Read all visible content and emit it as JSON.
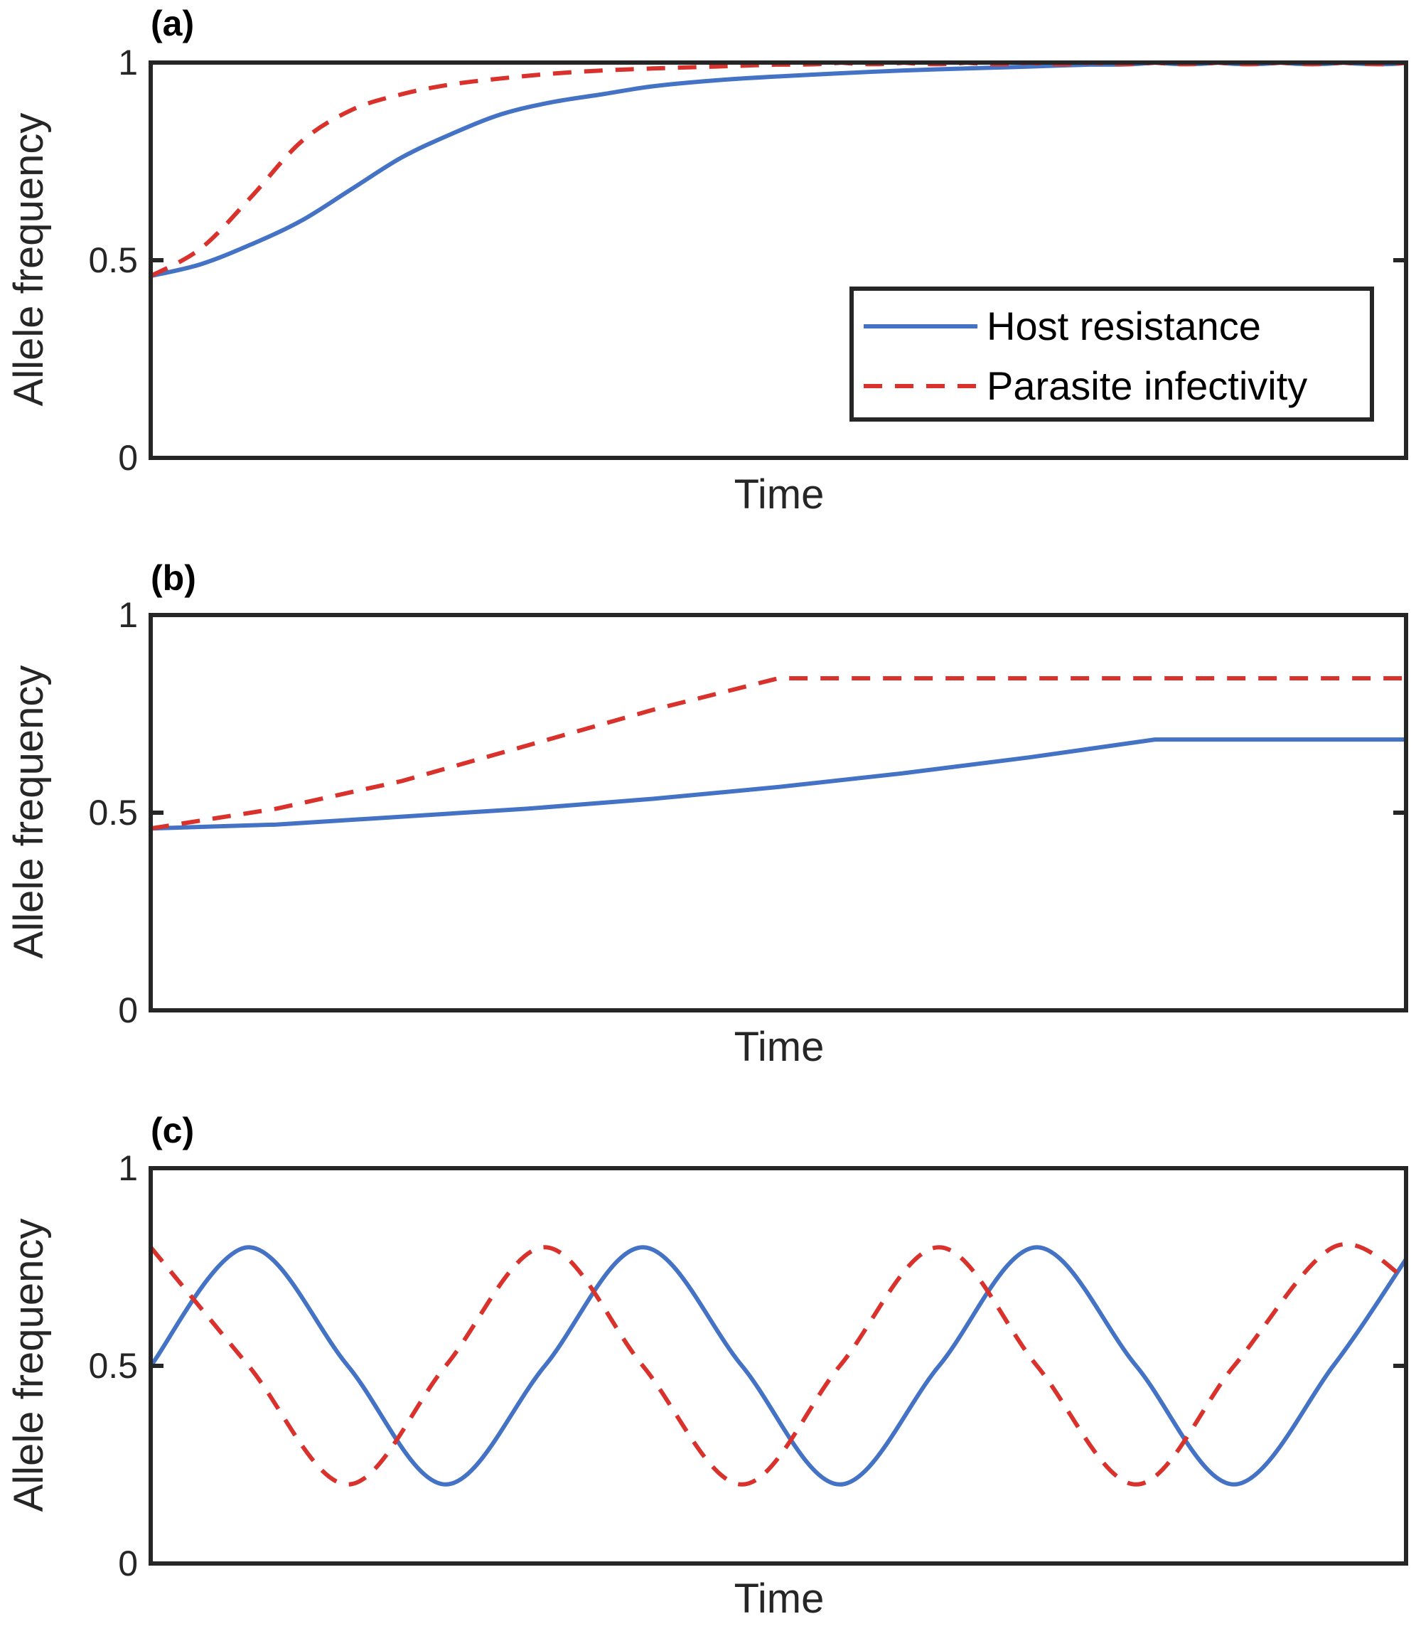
{
  "chart_data": [
    {
      "type": "line",
      "panel_label": "(a)",
      "xlabel": "Time",
      "ylabel": "Allele frequency",
      "ylim": [
        0,
        1
      ],
      "xlim": [
        0,
        1
      ],
      "yticks": [
        "0",
        "0.5",
        "1"
      ],
      "xticks": [],
      "grid": false,
      "legend": {
        "placement": "lower-right",
        "entries": [
          "Host resistance",
          "Parasite infectivity"
        ]
      },
      "series": [
        {
          "name": "Host resistance",
          "color": "#4472C4",
          "dash": "solid",
          "x": [
            0,
            0.04,
            0.08,
            0.12,
            0.16,
            0.2,
            0.24,
            0.28,
            0.32,
            0.36,
            0.4,
            0.45,
            0.5,
            0.55,
            0.6,
            0.65,
            0.7,
            0.75,
            0.8,
            0.85,
            0.9,
            0.95,
            1.0
          ],
          "values": [
            0.46,
            0.49,
            0.54,
            0.6,
            0.68,
            0.76,
            0.82,
            0.87,
            0.9,
            0.92,
            0.94,
            0.955,
            0.965,
            0.973,
            0.98,
            0.985,
            0.99,
            0.995,
            1.0,
            1.0,
            1.0,
            1.0,
            1.0
          ]
        },
        {
          "name": "Parasite infectivity",
          "color": "#D9312B",
          "dash": "dashed",
          "x": [
            0,
            0.04,
            0.08,
            0.12,
            0.16,
            0.2,
            0.24,
            0.28,
            0.32,
            0.36,
            0.4,
            0.45,
            0.5,
            0.55,
            0.6,
            0.65,
            0.7,
            0.75,
            0.8,
            0.85,
            0.9,
            0.95,
            1.0
          ],
          "values": [
            0.46,
            0.53,
            0.66,
            0.8,
            0.88,
            0.92,
            0.945,
            0.96,
            0.972,
            0.98,
            0.985,
            0.99,
            0.995,
            1.0,
            1.0,
            1.0,
            1.0,
            1.0,
            1.0,
            1.0,
            1.0,
            1.0,
            1.0
          ]
        }
      ]
    },
    {
      "type": "line",
      "panel_label": "(b)",
      "xlabel": "Time",
      "ylabel": "Allele frequency",
      "ylim": [
        0,
        1
      ],
      "xlim": [
        0,
        1
      ],
      "yticks": [
        "0",
        "0.5",
        "1"
      ],
      "xticks": [],
      "grid": false,
      "series": [
        {
          "name": "Host resistance",
          "color": "#4472C4",
          "dash": "solid",
          "x": [
            0,
            0.1,
            0.2,
            0.3,
            0.4,
            0.5,
            0.6,
            0.7,
            0.8,
            0.9,
            1.0
          ],
          "values": [
            0.46,
            0.47,
            0.49,
            0.51,
            0.535,
            0.565,
            0.6,
            0.64,
            0.685,
            0.685,
            0.685
          ]
        },
        {
          "name": "Parasite infectivity",
          "color": "#D9312B",
          "dash": "dashed",
          "x": [
            0,
            0.1,
            0.2,
            0.3,
            0.4,
            0.5,
            0.6,
            0.7,
            0.8,
            0.9,
            1.0
          ],
          "values": [
            0.46,
            0.51,
            0.58,
            0.67,
            0.76,
            0.84,
            0.84,
            0.84,
            0.84,
            0.84,
            0.84
          ]
        }
      ]
    },
    {
      "type": "line",
      "panel_label": "(c)",
      "xlabel": "Time",
      "ylabel": "Allele frequency",
      "ylim": [
        0,
        1
      ],
      "xlim": [
        0,
        1
      ],
      "yticks": [
        "0",
        "0.5",
        "1"
      ],
      "xticks": [],
      "grid": false,
      "series": [
        {
          "name": "Host resistance",
          "color": "#4472C4",
          "dash": "solid",
          "x": [
            0,
            0.078,
            0.157,
            0.235,
            0.314,
            0.392,
            0.471,
            0.549,
            0.628,
            0.706,
            0.785,
            0.863,
            0.942,
            1.0
          ],
          "values": [
            0.5,
            0.8,
            0.5,
            0.2,
            0.5,
            0.8,
            0.5,
            0.2,
            0.5,
            0.8,
            0.5,
            0.2,
            0.5,
            0.77
          ]
        },
        {
          "name": "Parasite infectivity",
          "color": "#D9312B",
          "dash": "dashed",
          "x": [
            0,
            0.078,
            0.157,
            0.235,
            0.314,
            0.392,
            0.471,
            0.549,
            0.628,
            0.706,
            0.785,
            0.863,
            0.942,
            1.0
          ],
          "values": [
            0.8,
            0.5,
            0.2,
            0.5,
            0.8,
            0.5,
            0.2,
            0.5,
            0.8,
            0.5,
            0.2,
            0.5,
            0.8,
            0.72
          ]
        }
      ]
    }
  ]
}
